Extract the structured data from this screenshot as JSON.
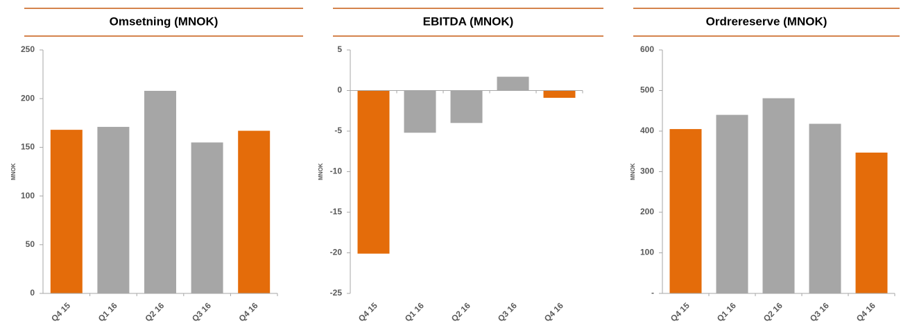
{
  "chart_data": [
    {
      "type": "bar",
      "title": "Omsetning (MNOK)",
      "y_label": "MNOK",
      "categories": [
        "Q4 15",
        "Q1 16",
        "Q2 16",
        "Q3 16",
        "Q4 16"
      ],
      "values": [
        168,
        171,
        208,
        155,
        167
      ],
      "colors": [
        "#e46c0a",
        "#a6a6a6",
        "#a6a6a6",
        "#a6a6a6",
        "#e46c0a"
      ],
      "ylim": [
        0,
        250
      ],
      "yticks": [
        0,
        50,
        100,
        150,
        200,
        250
      ]
    },
    {
      "type": "bar",
      "title": "EBITDA (MNOK)",
      "y_label": "MNOK",
      "categories": [
        "Q4 15",
        "Q1 16",
        "Q2 16",
        "Q3 16",
        "Q4 16"
      ],
      "values": [
        -20.1,
        -5.2,
        -4.0,
        1.7,
        -0.9
      ],
      "colors": [
        "#e46c0a",
        "#a6a6a6",
        "#a6a6a6",
        "#a6a6a6",
        "#e46c0a"
      ],
      "ylim": [
        -25,
        5
      ],
      "yticks": [
        -25,
        -20,
        -15,
        -10,
        -5,
        0,
        5
      ]
    },
    {
      "type": "bar",
      "title": "Ordrereserve (MNOK)",
      "y_label": "MNOK",
      "categories": [
        "Q4 15",
        "Q1 16",
        "Q2 16",
        "Q3 16",
        "Q4 16"
      ],
      "values": [
        405,
        440,
        481,
        418,
        347
      ],
      "colors": [
        "#e46c0a",
        "#a6a6a6",
        "#a6a6a6",
        "#a6a6a6",
        "#e46c0a"
      ],
      "ylim": [
        0,
        600
      ],
      "yticks": [
        {
          "value": 0,
          "label": "-"
        },
        100,
        200,
        300,
        400,
        500,
        600
      ]
    }
  ]
}
